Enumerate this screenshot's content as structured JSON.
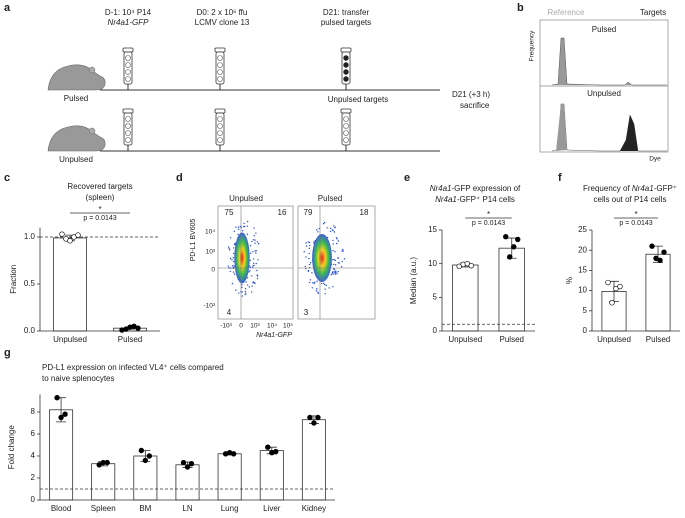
{
  "panel_labels": [
    "a",
    "b",
    "c",
    "d",
    "e",
    "f",
    "g"
  ],
  "panel_a": {
    "steps": [
      [
        "D-1: 10⁴ P14",
        "Nr4a1-GFP"
      ],
      [
        "D0: 2 x 10⁶ ffu",
        "LCMV clone 13"
      ],
      [
        "D21: transfer",
        "pulsed targets"
      ]
    ],
    "groups": [
      "Pulsed",
      "Unpulsed"
    ],
    "unpulsed_targets": "Unpulsed targets",
    "end": [
      "D21 (+3 h)",
      "sacrifice"
    ]
  },
  "panel_b": {
    "legend": [
      "Reference",
      "Targets"
    ],
    "rows": [
      "Pulsed",
      "Unpulsed"
    ],
    "ylabel": "Frequency",
    "xlabel": "Dye"
  },
  "panel_d": {
    "columns": [
      "Unpulsed",
      "Pulsed"
    ],
    "ylabel": "PD-L1 BV605",
    "xlabel": "Nr4a1-GFP",
    "quadrants": [
      [
        75,
        16,
        4
      ],
      [
        79,
        18,
        3
      ]
    ],
    "yticks": [
      "10⁴",
      "10³",
      "0",
      "-10³"
    ],
    "xticks": [
      "-10³",
      "0",
      "10³",
      "10⁴",
      "10⁵"
    ]
  },
  "chart_data": [
    {
      "type": "bar",
      "title": [
        "Recovered targets",
        "(spleen)"
      ],
      "ylabel": "Fraction",
      "categories": [
        "Unpulsed",
        "Pulsed"
      ],
      "values": [
        0.99,
        0.03
      ],
      "errors": [
        0.03,
        0.01
      ],
      "points": [
        [
          1.03,
          0.98,
          0.96,
          1.0,
          1.02
        ],
        [
          0.01,
          0.02,
          0.04,
          0.05,
          0.03
        ]
      ],
      "point_fills": [
        "#ffffff",
        "#000000"
      ],
      "ylim": [
        0,
        1.1
      ],
      "yticks": [
        {
          "value": 0,
          "label": "0.0"
        },
        {
          "value": 0.5,
          "label": "0.5"
        },
        {
          "value": 1,
          "label": "1.0"
        }
      ],
      "ref_line": 1,
      "significance": {
        "mark": "*",
        "p": "p = 0.0143"
      }
    },
    {
      "type": "bar",
      "title": [
        {
          "italic": "Nr4a1",
          "rest": "-GFP expression of"
        },
        {
          "italic": "Nr4a1",
          "rest": "-GFP⁺ P14 cells"
        }
      ],
      "ylabel": "Median (a.u.)",
      "categories": [
        "Unpulsed",
        "Pulsed"
      ],
      "values": [
        9.8,
        12.3
      ],
      "errors": [
        0.3,
        1.5
      ],
      "points": [
        [
          9.6,
          9.9,
          10.0,
          9.7
        ],
        [
          14.0,
          11.0,
          12.5,
          13.6
        ]
      ],
      "point_fills": [
        "#ffffff",
        "#000000"
      ],
      "ylim": [
        0,
        15
      ],
      "yticks": [
        0,
        5,
        10,
        15
      ],
      "ref_line": 1,
      "significance": {
        "mark": "*",
        "p": "p = 0.0143"
      }
    },
    {
      "type": "bar",
      "title": [
        {
          "pre": "Frequency of ",
          "italic": "Nr4a1",
          "rest": "-GFP⁺"
        },
        "cells out of P14 cells"
      ],
      "ylabel": "%",
      "categories": [
        "Unpulsed",
        "Pulsed"
      ],
      "values": [
        9.8,
        19.0
      ],
      "errors": [
        2.5,
        2.0
      ],
      "points": [
        [
          12,
          7,
          10.5,
          11
        ],
        [
          21,
          18,
          17.5,
          19.5
        ]
      ],
      "point_fills": [
        "#ffffff",
        "#000000"
      ],
      "ylim": [
        0,
        25
      ],
      "yticks": [
        0,
        5,
        10,
        15,
        20,
        25
      ],
      "significance": {
        "mark": "*",
        "p": "p = 0.0143"
      }
    },
    {
      "type": "bar",
      "title": [
        "PD-L1 expression on infected VL4⁺ cells compared",
        "to naive splenocytes"
      ],
      "ylabel": "Fold change",
      "categories": [
        "Blood",
        "Spleen",
        "BM",
        "LN",
        "Lung",
        "Liver",
        "Kidney"
      ],
      "values": [
        8.2,
        3.3,
        4.0,
        3.2,
        4.2,
        4.5,
        7.3
      ],
      "errors": [
        1.1,
        0.2,
        0.5,
        0.25,
        0.1,
        0.3,
        0.35
      ],
      "points": [
        [
          9.3,
          7.5,
          7.8
        ],
        [
          3.2,
          3.4,
          3.4
        ],
        [
          4.5,
          3.6,
          4.0
        ],
        [
          3.4,
          3.0,
          3.3
        ],
        [
          4.2,
          4.3,
          4.2
        ],
        [
          4.8,
          4.3,
          4.4
        ],
        [
          7.5,
          7.0,
          7.5
        ]
      ],
      "point_fills": [
        "#000000",
        "#000000",
        "#000000",
        "#000000",
        "#000000",
        "#000000",
        "#000000"
      ],
      "ylim": [
        0,
        9.6
      ],
      "yticks": [
        0,
        2,
        4,
        6,
        8
      ],
      "ref_line": 1
    }
  ]
}
